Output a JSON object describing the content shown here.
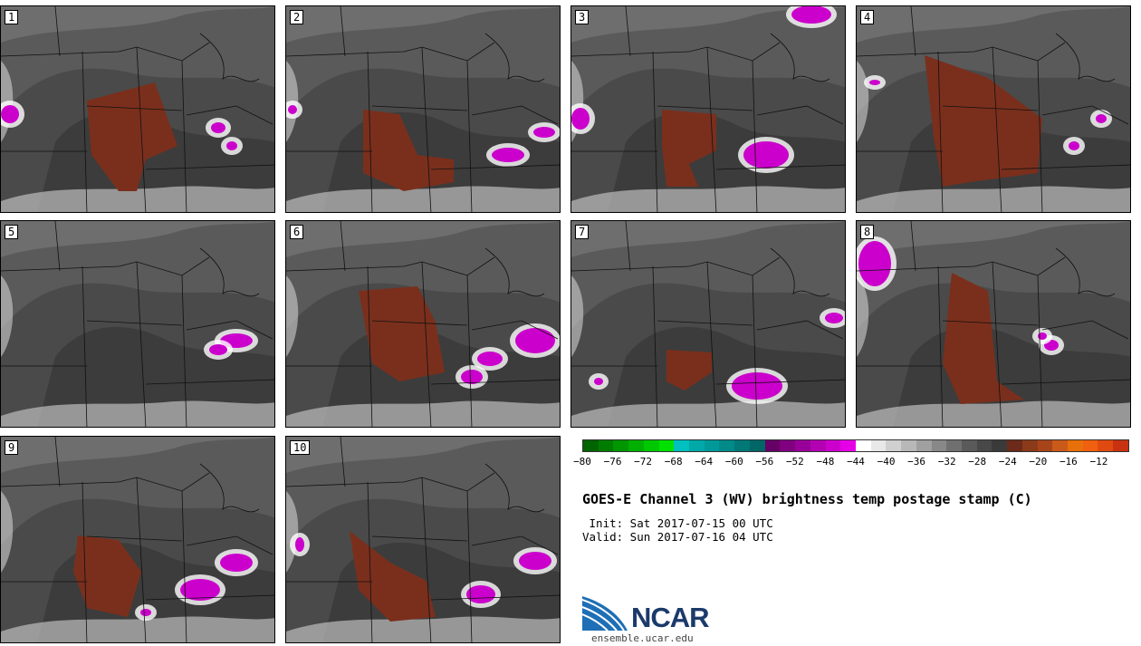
{
  "panels": [
    {
      "label": "1"
    },
    {
      "label": "2"
    },
    {
      "label": "3"
    },
    {
      "label": "4"
    },
    {
      "label": "5"
    },
    {
      "label": "6"
    },
    {
      "label": "7"
    },
    {
      "label": "8"
    },
    {
      "label": "9"
    },
    {
      "label": "10"
    }
  ],
  "colorbar": {
    "colors": [
      "#006400",
      "#007d00",
      "#009600",
      "#00af00",
      "#00c800",
      "#00e100",
      "#00c0c0",
      "#00a8a8",
      "#009999",
      "#008a8a",
      "#007878",
      "#006666",
      "#660066",
      "#800080",
      "#990099",
      "#b300b3",
      "#cc00cc",
      "#e600e6",
      "#ffffff",
      "#e8e8e8",
      "#d0d0d0",
      "#b8b8b8",
      "#a0a0a0",
      "#888888",
      "#707070",
      "#5a5a5a",
      "#484848",
      "#3a3a3a",
      "#6b2a1a",
      "#8b3a1a",
      "#a8441a",
      "#c95a1a",
      "#e8700a",
      "#f06010",
      "#e04a10",
      "#c83210"
    ],
    "tick_labels": [
      "−80",
      "−76",
      "−72",
      "−68",
      "−64",
      "−60",
      "−56",
      "−52",
      "−48",
      "−44",
      "−40",
      "−36",
      "−32",
      "−28",
      "−24",
      "−20",
      "−16",
      "−12"
    ]
  },
  "title": "GOES-E Channel 3 (WV) brightness temp postage stamp (C)",
  "init_line": " Init: Sat 2017-07-15 00 UTC",
  "valid_line": "Valid: Sun 2017-07-16 04 UTC",
  "logo": {
    "text": "NCAR",
    "url": "ensemble.ucar.edu"
  }
}
